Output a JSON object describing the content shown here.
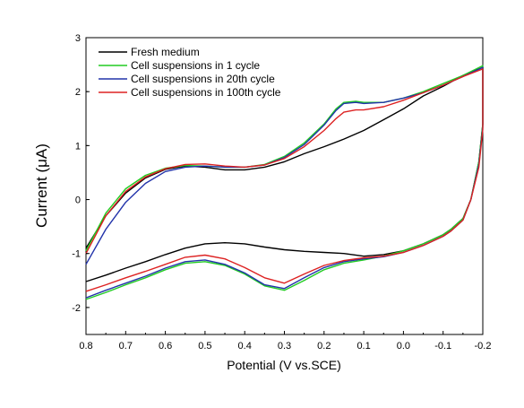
{
  "chart_data": {
    "type": "line",
    "title": "",
    "xlabel": "Potential (V vs.SCE)",
    "ylabel": "Current (μA)",
    "xlim": [
      0.8,
      -0.2
    ],
    "ylim": [
      -2.5,
      3
    ],
    "x_reversed": true,
    "x_ticks": [
      "0.8",
      "0.7",
      "0.6",
      "0.5",
      "0.4",
      "0.3",
      "0.2",
      "0.1",
      "0.0",
      "-0.1",
      "-0.2"
    ],
    "y_ticks": [
      "-2",
      "-1",
      "0",
      "1",
      "2",
      "3"
    ],
    "grid": false,
    "legend_position": "top-left",
    "series": [
      {
        "name": "Fresh medium",
        "color": "#000000",
        "upper": [
          [
            0.8,
            -0.9
          ],
          [
            0.75,
            -0.3
          ],
          [
            0.7,
            0.12
          ],
          [
            0.65,
            0.4
          ],
          [
            0.6,
            0.56
          ],
          [
            0.55,
            0.62
          ],
          [
            0.5,
            0.6
          ],
          [
            0.45,
            0.55
          ],
          [
            0.4,
            0.55
          ],
          [
            0.35,
            0.6
          ],
          [
            0.3,
            0.7
          ],
          [
            0.25,
            0.85
          ],
          [
            0.2,
            0.98
          ],
          [
            0.15,
            1.12
          ],
          [
            0.1,
            1.28
          ],
          [
            0.05,
            1.48
          ],
          [
            0.0,
            1.68
          ],
          [
            -0.05,
            1.92
          ],
          [
            -0.1,
            2.1
          ],
          [
            -0.15,
            2.3
          ],
          [
            -0.2,
            2.45
          ]
        ],
        "lower": [
          [
            -0.2,
            2.45
          ],
          [
            -0.2,
            1.4
          ],
          [
            -0.19,
            0.7
          ],
          [
            -0.17,
            0.0
          ],
          [
            -0.15,
            -0.35
          ],
          [
            -0.12,
            -0.55
          ],
          [
            -0.1,
            -0.65
          ],
          [
            -0.05,
            -0.82
          ],
          [
            0.0,
            -0.95
          ],
          [
            0.05,
            -1.02
          ],
          [
            0.1,
            -1.05
          ],
          [
            0.15,
            -1.0
          ],
          [
            0.2,
            -0.98
          ],
          [
            0.25,
            -0.96
          ],
          [
            0.3,
            -0.93
          ],
          [
            0.35,
            -0.88
          ],
          [
            0.4,
            -0.82
          ],
          [
            0.45,
            -0.8
          ],
          [
            0.5,
            -0.82
          ],
          [
            0.55,
            -0.9
          ],
          [
            0.6,
            -1.02
          ],
          [
            0.65,
            -1.15
          ],
          [
            0.7,
            -1.27
          ],
          [
            0.75,
            -1.4
          ],
          [
            0.8,
            -1.52
          ]
        ]
      },
      {
        "name": "Cell suspensions in 1 cycle",
        "color": "#22cc22",
        "upper": [
          [
            0.8,
            -0.95
          ],
          [
            0.75,
            -0.25
          ],
          [
            0.7,
            0.2
          ],
          [
            0.65,
            0.45
          ],
          [
            0.6,
            0.58
          ],
          [
            0.55,
            0.63
          ],
          [
            0.5,
            0.62
          ],
          [
            0.45,
            0.6
          ],
          [
            0.4,
            0.6
          ],
          [
            0.35,
            0.65
          ],
          [
            0.3,
            0.8
          ],
          [
            0.25,
            1.05
          ],
          [
            0.2,
            1.4
          ],
          [
            0.17,
            1.68
          ],
          [
            0.15,
            1.8
          ],
          [
            0.12,
            1.82
          ],
          [
            0.1,
            1.8
          ],
          [
            0.05,
            1.8
          ],
          [
            0.0,
            1.88
          ],
          [
            -0.05,
            2.0
          ],
          [
            -0.1,
            2.15
          ],
          [
            -0.15,
            2.3
          ],
          [
            -0.2,
            2.48
          ]
        ],
        "lower": [
          [
            -0.2,
            2.48
          ],
          [
            -0.2,
            1.4
          ],
          [
            -0.19,
            0.7
          ],
          [
            -0.17,
            0.0
          ],
          [
            -0.15,
            -0.35
          ],
          [
            -0.12,
            -0.55
          ],
          [
            -0.1,
            -0.65
          ],
          [
            -0.05,
            -0.82
          ],
          [
            0.0,
            -0.95
          ],
          [
            0.05,
            -1.05
          ],
          [
            0.1,
            -1.12
          ],
          [
            0.15,
            -1.18
          ],
          [
            0.2,
            -1.3
          ],
          [
            0.25,
            -1.5
          ],
          [
            0.3,
            -1.68
          ],
          [
            0.35,
            -1.6
          ],
          [
            0.4,
            -1.38
          ],
          [
            0.45,
            -1.22
          ],
          [
            0.5,
            -1.15
          ],
          [
            0.55,
            -1.18
          ],
          [
            0.6,
            -1.3
          ],
          [
            0.65,
            -1.45
          ],
          [
            0.7,
            -1.58
          ],
          [
            0.75,
            -1.72
          ],
          [
            0.8,
            -1.85
          ]
        ]
      },
      {
        "name": "Cell suspensions in 20th cycle",
        "color": "#2233aa",
        "upper": [
          [
            0.8,
            -1.2
          ],
          [
            0.75,
            -0.55
          ],
          [
            0.7,
            -0.05
          ],
          [
            0.65,
            0.3
          ],
          [
            0.6,
            0.52
          ],
          [
            0.55,
            0.6
          ],
          [
            0.5,
            0.62
          ],
          [
            0.45,
            0.6
          ],
          [
            0.4,
            0.6
          ],
          [
            0.35,
            0.64
          ],
          [
            0.3,
            0.78
          ],
          [
            0.25,
            1.02
          ],
          [
            0.2,
            1.38
          ],
          [
            0.17,
            1.65
          ],
          [
            0.15,
            1.78
          ],
          [
            0.12,
            1.8
          ],
          [
            0.1,
            1.78
          ],
          [
            0.05,
            1.8
          ],
          [
            0.0,
            1.88
          ],
          [
            -0.05,
            1.98
          ],
          [
            -0.1,
            2.12
          ],
          [
            -0.15,
            2.28
          ],
          [
            -0.2,
            2.45
          ]
        ],
        "lower": [
          [
            -0.2,
            2.45
          ],
          [
            -0.2,
            1.35
          ],
          [
            -0.19,
            0.65
          ],
          [
            -0.17,
            0.0
          ],
          [
            -0.15,
            -0.38
          ],
          [
            -0.12,
            -0.58
          ],
          [
            -0.1,
            -0.68
          ],
          [
            -0.05,
            -0.85
          ],
          [
            0.0,
            -0.98
          ],
          [
            0.05,
            -1.06
          ],
          [
            0.1,
            -1.1
          ],
          [
            0.15,
            -1.15
          ],
          [
            0.2,
            -1.26
          ],
          [
            0.25,
            -1.45
          ],
          [
            0.3,
            -1.65
          ],
          [
            0.35,
            -1.58
          ],
          [
            0.4,
            -1.36
          ],
          [
            0.45,
            -1.2
          ],
          [
            0.5,
            -1.12
          ],
          [
            0.55,
            -1.15
          ],
          [
            0.6,
            -1.27
          ],
          [
            0.65,
            -1.42
          ],
          [
            0.7,
            -1.55
          ],
          [
            0.75,
            -1.68
          ],
          [
            0.8,
            -1.82
          ]
        ]
      },
      {
        "name": "Cell suspensions in 100th cycle",
        "color": "#dd2222",
        "upper": [
          [
            0.8,
            -1.0
          ],
          [
            0.75,
            -0.3
          ],
          [
            0.7,
            0.15
          ],
          [
            0.65,
            0.42
          ],
          [
            0.6,
            0.57
          ],
          [
            0.55,
            0.65
          ],
          [
            0.5,
            0.66
          ],
          [
            0.45,
            0.62
          ],
          [
            0.4,
            0.6
          ],
          [
            0.35,
            0.64
          ],
          [
            0.3,
            0.76
          ],
          [
            0.25,
            0.98
          ],
          [
            0.2,
            1.28
          ],
          [
            0.17,
            1.5
          ],
          [
            0.15,
            1.62
          ],
          [
            0.12,
            1.66
          ],
          [
            0.1,
            1.66
          ],
          [
            0.05,
            1.72
          ],
          [
            0.0,
            1.84
          ],
          [
            -0.05,
            1.98
          ],
          [
            -0.1,
            2.12
          ],
          [
            -0.15,
            2.28
          ],
          [
            -0.2,
            2.42
          ]
        ],
        "lower": [
          [
            -0.2,
            2.42
          ],
          [
            -0.2,
            1.3
          ],
          [
            -0.19,
            0.6
          ],
          [
            -0.17,
            0.0
          ],
          [
            -0.15,
            -0.38
          ],
          [
            -0.12,
            -0.58
          ],
          [
            -0.1,
            -0.68
          ],
          [
            -0.05,
            -0.85
          ],
          [
            0.0,
            -0.98
          ],
          [
            0.05,
            -1.05
          ],
          [
            0.1,
            -1.08
          ],
          [
            0.15,
            -1.13
          ],
          [
            0.2,
            -1.22
          ],
          [
            0.25,
            -1.38
          ],
          [
            0.3,
            -1.55
          ],
          [
            0.35,
            -1.45
          ],
          [
            0.4,
            -1.26
          ],
          [
            0.45,
            -1.1
          ],
          [
            0.5,
            -1.03
          ],
          [
            0.55,
            -1.07
          ],
          [
            0.6,
            -1.2
          ],
          [
            0.65,
            -1.33
          ],
          [
            0.7,
            -1.45
          ],
          [
            0.75,
            -1.58
          ],
          [
            0.8,
            -1.7
          ]
        ]
      }
    ]
  }
}
